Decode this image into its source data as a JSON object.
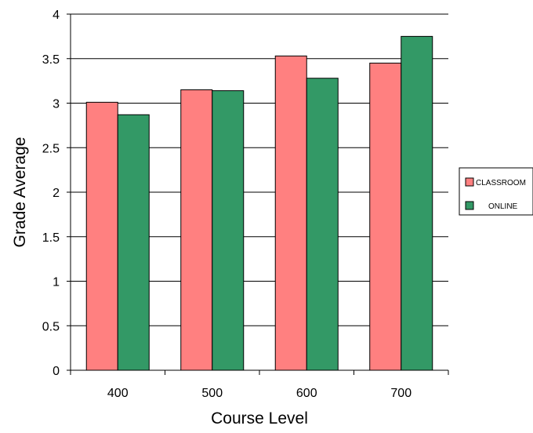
{
  "chart_data": {
    "type": "bar",
    "title": "",
    "xlabel": "Course Level",
    "ylabel": "Grade Average",
    "categories": [
      "400",
      "500",
      "600",
      "700"
    ],
    "ylim": [
      0,
      4
    ],
    "yticks": [
      "0",
      "0.5",
      "1",
      "1.5",
      "2",
      "2.5",
      "3",
      "3.5",
      "4"
    ],
    "grid": "horizontal",
    "legend_position": "right",
    "series": [
      {
        "name": "CLASSROOM",
        "color": "#ff8080",
        "values": [
          3.01,
          3.15,
          3.53,
          3.45
        ]
      },
      {
        "name": "ONLINE",
        "color": "#339966",
        "values": [
          2.87,
          3.14,
          3.28,
          3.75
        ]
      }
    ]
  }
}
